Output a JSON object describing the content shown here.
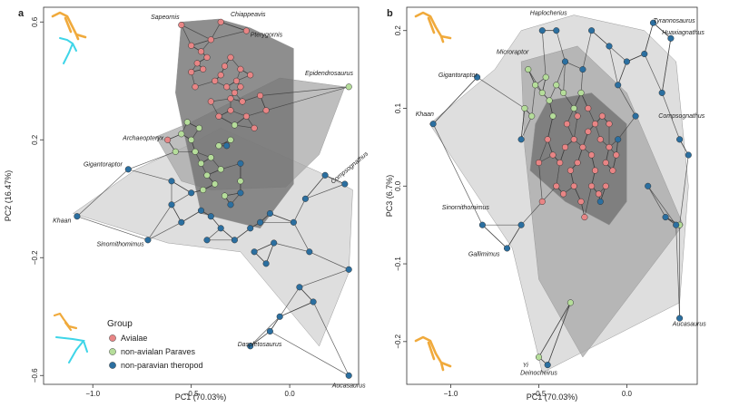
{
  "colors": {
    "Avialae": "#e88585",
    "non-avialan Paraves": "#b5dd9a",
    "non-paravian theropod": "#2b6fa0",
    "hull_nonparavian": "#d8d8d8",
    "hull_paraves": "#a8a8a8",
    "hull_avialae": "#727272",
    "silhouette_orange": "#f0aa3c",
    "silhouette_cyan": "#3ed5e8"
  },
  "legend": {
    "title": "Group",
    "items": [
      "Avialae",
      "non-avialan Paraves",
      "non-paravian theropod"
    ]
  },
  "chart_data": [
    {
      "type": "scatter",
      "panel": "a",
      "xlabel": "PC1 (70.03%)",
      "ylabel": "PC2 (16.47%)",
      "xlim": [
        -1.25,
        0.35
      ],
      "ylim": [
        -0.63,
        0.65
      ],
      "xticks": [
        -1.0,
        -0.5,
        0.0
      ],
      "xtick_labels": [
        "−1.0",
        "−0.5",
        "0.0"
      ],
      "yticks": [
        0.6,
        0.2,
        -0.2,
        -0.6
      ],
      "ytick_labels": [
        "0.6",
        "0.2",
        "−0.2",
        "−0.6"
      ],
      "hulls": {
        "non-paravian theropod": [
          [
            -1.1,
            -0.05
          ],
          [
            -0.78,
            0.1
          ],
          [
            -0.52,
            0.18
          ],
          [
            -0.35,
            0.24
          ],
          [
            0.15,
            0.09
          ],
          [
            0.32,
            0.03
          ],
          [
            0.3,
            -0.25
          ],
          [
            0.15,
            -0.5
          ],
          [
            -0.25,
            -0.18
          ],
          [
            -0.62,
            -0.15
          ]
        ],
        "non-avialan Paraves": [
          [
            -0.68,
            0.21
          ],
          [
            -0.5,
            0.26
          ],
          [
            -0.05,
            0.41
          ],
          [
            0.28,
            0.38
          ],
          [
            0.15,
            0.15
          ],
          [
            -0.02,
            0.04
          ],
          [
            -0.4,
            0.03
          ],
          [
            -0.55,
            0.06
          ]
        ],
        "Avialae": [
          [
            -0.55,
            0.6
          ],
          [
            -0.36,
            0.61
          ],
          [
            -0.2,
            0.58
          ],
          [
            0.02,
            0.51
          ],
          [
            0.02,
            0.05
          ],
          [
            -0.15,
            -0.1
          ],
          [
            -0.45,
            -0.05
          ],
          [
            -0.58,
            0.36
          ]
        ]
      },
      "series": [
        {
          "name": "Avialae",
          "points": [
            [
              -0.55,
              0.59
            ],
            [
              -0.35,
              0.6
            ],
            [
              -0.22,
              0.57
            ],
            [
              -0.62,
              0.2
            ],
            [
              -0.5,
              0.52
            ],
            [
              -0.45,
              0.5
            ],
            [
              -0.4,
              0.54
            ],
            [
              -0.3,
              0.48
            ],
            [
              -0.25,
              0.44
            ],
            [
              -0.2,
              0.42
            ],
            [
              -0.44,
              0.44
            ],
            [
              -0.38,
              0.4
            ],
            [
              -0.32,
              0.38
            ],
            [
              -0.28,
              0.36
            ],
            [
              -0.24,
              0.33
            ],
            [
              -0.4,
              0.33
            ],
            [
              -0.36,
              0.28
            ],
            [
              -0.3,
              0.3
            ],
            [
              -0.22,
              0.28
            ],
            [
              -0.18,
              0.24
            ],
            [
              -0.47,
              0.46
            ],
            [
              -0.33,
              0.45
            ],
            [
              -0.27,
              0.4
            ],
            [
              -0.5,
              0.43
            ],
            [
              -0.42,
              0.48
            ],
            [
              -0.35,
              0.42
            ],
            [
              -0.3,
              0.34
            ],
            [
              -0.25,
              0.38
            ],
            [
              -0.48,
              0.38
            ],
            [
              -0.15,
              0.35
            ],
            [
              -0.12,
              0.3
            ]
          ]
        },
        {
          "name": "non-avialan Paraves",
          "points": [
            [
              0.3,
              0.38
            ],
            [
              -0.55,
              0.22
            ],
            [
              -0.5,
              0.2
            ],
            [
              -0.48,
              0.16
            ],
            [
              -0.45,
              0.12
            ],
            [
              -0.42,
              0.08
            ],
            [
              -0.38,
              0.05
            ],
            [
              -0.52,
              0.26
            ],
            [
              -0.46,
              0.24
            ],
            [
              -0.4,
              0.14
            ],
            [
              -0.35,
              0.1
            ],
            [
              -0.33,
              0.01
            ],
            [
              -0.44,
              0.03
            ],
            [
              -0.25,
              0.06
            ],
            [
              -0.3,
              0.2
            ],
            [
              -0.36,
              0.18
            ],
            [
              -0.58,
              0.16
            ],
            [
              -0.28,
              0.25
            ]
          ]
        },
        {
          "name": "non-paravian theropod",
          "points": [
            [
              -1.08,
              -0.06
            ],
            [
              -0.82,
              0.1
            ],
            [
              -0.72,
              -0.14
            ],
            [
              0.28,
              0.05
            ],
            [
              0.3,
              -0.24
            ],
            [
              0.1,
              -0.18
            ],
            [
              0.3,
              -0.6
            ],
            [
              -0.1,
              -0.45
            ],
            [
              -0.2,
              -0.5
            ],
            [
              -0.05,
              -0.4
            ],
            [
              -0.6,
              -0.02
            ],
            [
              -0.55,
              -0.08
            ],
            [
              -0.5,
              0.02
            ],
            [
              -0.45,
              -0.04
            ],
            [
              -0.4,
              -0.06
            ],
            [
              -0.3,
              -0.02
            ],
            [
              -0.25,
              0.02
            ],
            [
              -0.2,
              -0.1
            ],
            [
              -0.15,
              -0.08
            ],
            [
              -0.1,
              -0.05
            ],
            [
              -0.35,
              -0.1
            ],
            [
              -0.28,
              -0.14
            ],
            [
              -0.18,
              -0.18
            ],
            [
              -0.08,
              -0.15
            ],
            [
              0.02,
              -0.08
            ],
            [
              0.08,
              0.0
            ],
            [
              0.12,
              -0.35
            ],
            [
              0.05,
              -0.3
            ],
            [
              -0.42,
              -0.14
            ],
            [
              -0.12,
              -0.22
            ],
            [
              -0.32,
              0.18
            ],
            [
              -0.25,
              0.12
            ],
            [
              0.18,
              0.08
            ],
            [
              -0.6,
              0.06
            ]
          ]
        }
      ],
      "annotations": [
        {
          "text": "Sapeornis",
          "x": -0.56,
          "y": 0.61,
          "anchor": "end"
        },
        {
          "text": "Chiappeavis",
          "x": -0.3,
          "y": 0.62,
          "anchor": "start"
        },
        {
          "text": "Pterygornis",
          "x": -0.2,
          "y": 0.55,
          "anchor": "start"
        },
        {
          "text": "Epidendrosaurus",
          "x": 0.2,
          "y": 0.42,
          "anchor": "middle"
        },
        {
          "text": "Archaeopteryx",
          "x": -0.64,
          "y": 0.2,
          "anchor": "end"
        },
        {
          "text": "Gigantoraptor",
          "x": -0.85,
          "y": 0.11,
          "anchor": "end"
        },
        {
          "text": "Compsognathus",
          "x": 0.22,
          "y": 0.05,
          "anchor": "start",
          "rotate": -40
        },
        {
          "text": "Khaan",
          "x": -1.11,
          "y": -0.08,
          "anchor": "end"
        },
        {
          "text": "Sinornithomimus",
          "x": -0.74,
          "y": -0.16,
          "anchor": "end"
        },
        {
          "text": "Daspletosaurus",
          "x": -0.04,
          "y": -0.5,
          "anchor": "end"
        },
        {
          "text": "Aucasaurus",
          "x": 0.3,
          "y": -0.64,
          "anchor": "middle"
        }
      ]
    },
    {
      "type": "scatter",
      "panel": "b",
      "xlabel": "PC1 (70.03%)",
      "ylabel": "PC3 (6.7%)",
      "xlim": [
        -1.25,
        0.4
      ],
      "ylim": [
        -0.255,
        0.23
      ],
      "xticks": [
        -1.0,
        -0.5,
        0.0
      ],
      "xtick_labels": [
        "−1.0",
        "−0.5",
        "0.0"
      ],
      "yticks": [
        0.2,
        0.1,
        0.0,
        -0.1,
        -0.2
      ],
      "ytick_labels": [
        "0.2",
        "0.1",
        "0.0",
        "−0.1",
        "−0.2"
      ],
      "hulls": {
        "non-paravian theropod": [
          [
            -1.12,
            0.08
          ],
          [
            -0.75,
            0.15
          ],
          [
            -0.6,
            0.2
          ],
          [
            -0.3,
            0.22
          ],
          [
            0.1,
            0.2
          ],
          [
            0.28,
            0.16
          ],
          [
            0.35,
            0.0
          ],
          [
            0.3,
            -0.15
          ],
          [
            -0.48,
            -0.24
          ],
          [
            -0.65,
            -0.08
          ]
        ],
        "non-avialan Paraves": [
          [
            -0.6,
            0.16
          ],
          [
            -0.28,
            0.18
          ],
          [
            0.0,
            0.12
          ],
          [
            0.32,
            -0.05
          ],
          [
            -0.25,
            -0.22
          ],
          [
            -0.5,
            -0.12
          ],
          [
            -0.58,
            0.05
          ]
        ],
        "Avialae": [
          [
            -0.45,
            0.11
          ],
          [
            -0.2,
            0.12
          ],
          [
            0.0,
            0.08
          ],
          [
            0.0,
            -0.02
          ],
          [
            -0.1,
            -0.05
          ],
          [
            -0.35,
            -0.02
          ],
          [
            -0.55,
            0.02
          ],
          [
            -0.52,
            0.08
          ]
        ]
      },
      "series": [
        {
          "name": "Avialae",
          "points": [
            [
              -0.45,
              0.06
            ],
            [
              -0.42,
              0.04
            ],
            [
              -0.38,
              0.03
            ],
            [
              -0.35,
              0.05
            ],
            [
              -0.32,
              0.02
            ],
            [
              -0.3,
              0.06
            ],
            [
              -0.28,
              0.03
            ],
            [
              -0.25,
              0.05
            ],
            [
              -0.22,
              0.07
            ],
            [
              -0.2,
              0.04
            ],
            [
              -0.18,
              0.02
            ],
            [
              -0.15,
              0.06
            ],
            [
              -0.12,
              0.03
            ],
            [
              -0.1,
              0.05
            ],
            [
              -0.08,
              0.02
            ],
            [
              -0.4,
              0.0
            ],
            [
              -0.36,
              -0.01
            ],
            [
              -0.3,
              0.0
            ],
            [
              -0.26,
              -0.02
            ],
            [
              -0.2,
              0.0
            ],
            [
              -0.16,
              -0.01
            ],
            [
              -0.12,
              0.0
            ],
            [
              -0.34,
              0.08
            ],
            [
              -0.28,
              0.09
            ],
            [
              -0.22,
              0.1
            ],
            [
              -0.18,
              0.08
            ],
            [
              -0.14,
              0.09
            ],
            [
              -0.1,
              0.08
            ],
            [
              -0.5,
              0.03
            ],
            [
              -0.48,
              -0.02
            ],
            [
              -0.24,
              -0.04
            ],
            [
              -0.06,
              0.04
            ]
          ]
        },
        {
          "name": "non-avialan Paraves",
          "points": [
            [
              -0.56,
              0.15
            ],
            [
              -0.52,
              0.13
            ],
            [
              -0.48,
              0.12
            ],
            [
              -0.44,
              0.11
            ],
            [
              -0.54,
              0.09
            ],
            [
              -0.46,
              0.14
            ],
            [
              -0.4,
              0.13
            ],
            [
              -0.36,
              0.12
            ],
            [
              -0.3,
              0.1
            ],
            [
              -0.5,
              -0.22
            ],
            [
              -0.32,
              -0.15
            ],
            [
              0.3,
              -0.05
            ],
            [
              -0.58,
              0.1
            ],
            [
              -0.42,
              0.09
            ],
            [
              -0.26,
              0.12
            ]
          ]
        },
        {
          "name": "non-paravian theropod",
          "points": [
            [
              -1.1,
              0.08
            ],
            [
              -0.85,
              0.14
            ],
            [
              -0.82,
              -0.05
            ],
            [
              -0.68,
              -0.08
            ],
            [
              -0.48,
              0.2
            ],
            [
              -0.4,
              0.2
            ],
            [
              -0.2,
              0.2
            ],
            [
              0.15,
              0.21
            ],
            [
              0.25,
              0.19
            ],
            [
              0.0,
              0.16
            ],
            [
              -0.05,
              0.13
            ],
            [
              0.1,
              0.17
            ],
            [
              0.3,
              0.06
            ],
            [
              0.22,
              -0.04
            ],
            [
              0.3,
              -0.17
            ],
            [
              0.28,
              -0.05
            ],
            [
              -0.45,
              -0.23
            ],
            [
              -0.6,
              -0.05
            ],
            [
              -0.15,
              -0.02
            ],
            [
              -0.05,
              0.06
            ],
            [
              0.05,
              0.09
            ],
            [
              0.12,
              0.0
            ],
            [
              -0.25,
              0.15
            ],
            [
              -0.35,
              0.16
            ],
            [
              -0.6,
              0.06
            ],
            [
              0.2,
              0.12
            ],
            [
              -0.1,
              0.18
            ],
            [
              0.35,
              0.04
            ]
          ]
        }
      ],
      "annotations": [
        {
          "text": "Haplocherius",
          "x": -0.55,
          "y": 0.22,
          "anchor": "start"
        },
        {
          "text": "Tyrannosaurus",
          "x": 0.15,
          "y": 0.21,
          "anchor": "start"
        },
        {
          "text": "Huaxiagnathus",
          "x": 0.2,
          "y": 0.195,
          "anchor": "start"
        },
        {
          "text": "Microraptor",
          "x": -0.74,
          "y": 0.17,
          "anchor": "start"
        },
        {
          "text": "Gigantoraptor",
          "x": -1.07,
          "y": 0.14,
          "anchor": "start"
        },
        {
          "text": "Khaan",
          "x": -1.2,
          "y": 0.09,
          "anchor": "start"
        },
        {
          "text": "Compsognathus",
          "x": 0.18,
          "y": 0.088,
          "anchor": "start"
        },
        {
          "text": "Sinornithomimus",
          "x": -1.05,
          "y": -0.03,
          "anchor": "start"
        },
        {
          "text": "Gallimimus",
          "x": -0.9,
          "y": -0.09,
          "anchor": "start"
        },
        {
          "text": "Aucasaurus",
          "x": 0.26,
          "y": -0.18,
          "anchor": "start"
        },
        {
          "text": "Yi",
          "x": -0.56,
          "y": -0.233,
          "anchor": "end"
        },
        {
          "text": "Deinocheirus",
          "x": -0.5,
          "y": -0.243,
          "anchor": "middle"
        }
      ]
    }
  ]
}
